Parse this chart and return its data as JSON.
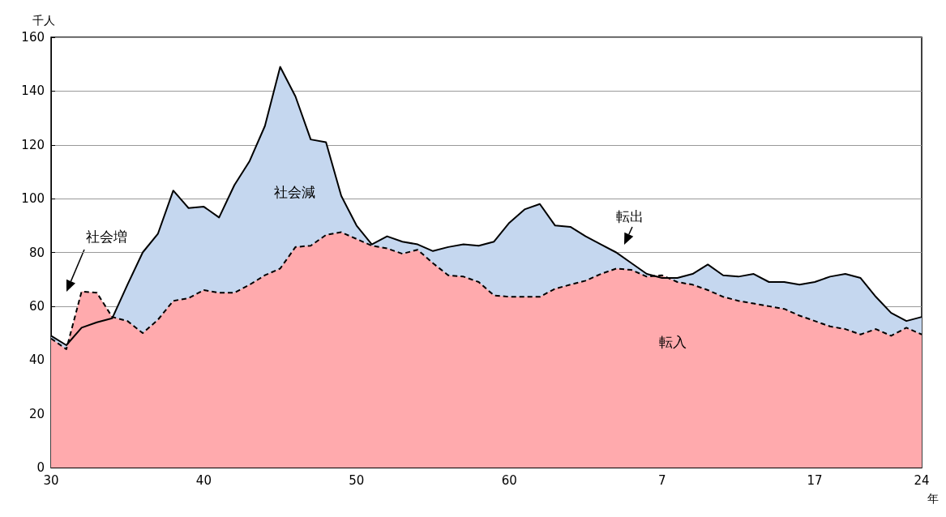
{
  "chart_data": {
    "type": "area",
    "xlabel": "年",
    "ylabel": "千人",
    "categories": [
      "30",
      null,
      null,
      null,
      null,
      null,
      null,
      null,
      null,
      null,
      "40",
      null,
      null,
      null,
      null,
      null,
      null,
      null,
      null,
      null,
      "50",
      null,
      null,
      null,
      null,
      null,
      null,
      null,
      null,
      null,
      "60",
      null,
      null,
      null,
      null,
      null,
      null,
      null,
      null,
      null,
      "7",
      null,
      null,
      null,
      null,
      null,
      null,
      null,
      null,
      null,
      "17",
      null,
      null,
      null,
      null,
      null,
      null,
      "24"
    ],
    "series": [
      {
        "name": "転出",
        "color": "#c5d7ef",
        "line_style": "solid",
        "values": [
          49,
          45.5,
          52,
          54,
          55.5,
          68,
          80,
          87,
          103,
          96.5,
          97,
          93,
          105,
          114,
          127,
          149,
          138,
          122,
          121,
          101,
          90,
          83,
          86,
          84,
          83,
          80.5,
          82,
          83,
          82.5,
          84,
          91,
          96,
          98,
          90,
          89.5,
          86,
          83,
          80,
          76,
          72,
          70.5,
          70.5,
          72,
          75.5,
          71.5,
          71,
          72,
          69,
          69,
          68,
          69,
          71,
          72,
          70.5,
          63.5,
          57.5,
          54.5,
          56
        ]
      },
      {
        "name": "転入",
        "color": "#ffaaad",
        "line_style": "dashed",
        "values": [
          48,
          44,
          65.5,
          65,
          56,
          54.5,
          50,
          55,
          62,
          63,
          66,
          65,
          65,
          68,
          71.5,
          74,
          82,
          82.5,
          86.5,
          87.5,
          85,
          82.5,
          81.5,
          79.5,
          81,
          76,
          71.5,
          71,
          69,
          64,
          63.5,
          63.5,
          63.5,
          66.5,
          68,
          69.5,
          72,
          74,
          73.5,
          71,
          71.5,
          69,
          68,
          66,
          63.5,
          62,
          61,
          60,
          59,
          56.5,
          54.5,
          52.5,
          51.5,
          49.5,
          51.5,
          49,
          52,
          49.5
        ]
      }
    ],
    "annotations": [
      "社会減",
      "社会増"
    ],
    "ylim": [
      0,
      160
    ],
    "yticks": [
      0,
      20,
      40,
      60,
      80,
      100,
      120,
      140,
      160
    ],
    "grid": "y",
    "legend": false
  }
}
